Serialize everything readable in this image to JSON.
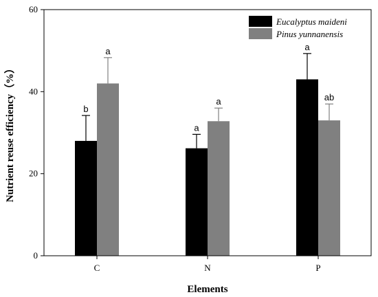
{
  "chart_data": {
    "type": "bar",
    "xlabel": "Elements",
    "ylabel": "Nutrient reuse efficiency（%）",
    "categories": [
      "C",
      "N",
      "P"
    ],
    "ylim": [
      0,
      60
    ],
    "yticks": [
      "0",
      "20",
      "40",
      "60"
    ],
    "grid": false,
    "legend_position": "top-right",
    "series": [
      {
        "name": "Eucalyptus maideni",
        "color": "#000000",
        "values": [
          28.0,
          26.2,
          43.0
        ],
        "errors": [
          6.2,
          3.4,
          6.3
        ],
        "labels": [
          "b",
          "a",
          "a"
        ]
      },
      {
        "name": "Pinus yunnanensis",
        "color": "#808080",
        "values": [
          42.0,
          32.8,
          33.0
        ],
        "errors": [
          6.3,
          3.2,
          4.0
        ],
        "labels": [
          "a",
          "a",
          "ab"
        ]
      }
    ]
  }
}
